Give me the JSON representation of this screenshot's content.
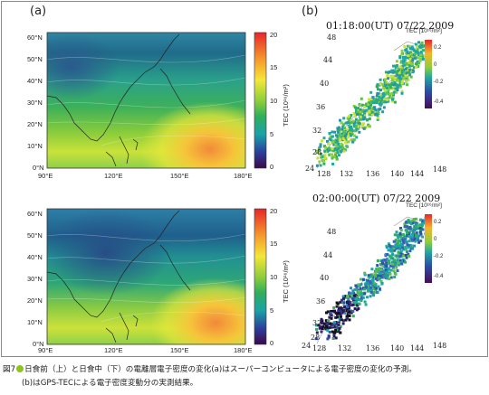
{
  "figure": {
    "panel_a_label": "(a)",
    "panel_b_label": "(b)",
    "lat_labels": [
      "60°N",
      "50°N",
      "40°N",
      "30°N",
      "20°N",
      "10°N",
      "0°N"
    ],
    "lon_labels": [
      "90°E",
      "120°E",
      "150°E",
      "180°E"
    ],
    "colorbar_a": {
      "title": "TEC (10¹⁶/m²)",
      "ticks": [
        "20",
        "15",
        "10",
        "5",
        "0"
      ]
    },
    "map_top": {
      "title": "01:18:00(UT)  07/22 2009",
      "colorbar_title": "TEC [10¹⁶/m²]",
      "ticks": [
        "0.2",
        "0",
        "-0.2",
        "-0.4"
      ],
      "lat_ticks": [
        "48",
        "44",
        "40",
        "36",
        "32",
        "28",
        "24"
      ],
      "lon_ticks": [
        "128",
        "132",
        "136",
        "140",
        "144",
        "148"
      ]
    },
    "map_bottom": {
      "title": "02:00:00(UT)  07/22 2009",
      "colorbar_title": "TEC [10¹⁶/m²]",
      "ticks": [
        "0.2",
        "0",
        "-0.2",
        "-0.4"
      ],
      "lat_ticks": [
        "48",
        "44",
        "40",
        "36",
        "32",
        "28",
        "24"
      ],
      "lon_ticks": [
        "128",
        "132",
        "136",
        "140",
        "144",
        "148"
      ]
    }
  },
  "caption": {
    "prefix": "図7",
    "line1": "日食前（上）と日食中（下）の電離層電子密度の変化(a)はスーパーコンピュータによる電子密度の変化の予測。",
    "line2": "(b)はGPS-TECによる電子密度変動分の実測結果。"
  },
  "colors": {
    "caption_dot": "#8fc31f"
  }
}
